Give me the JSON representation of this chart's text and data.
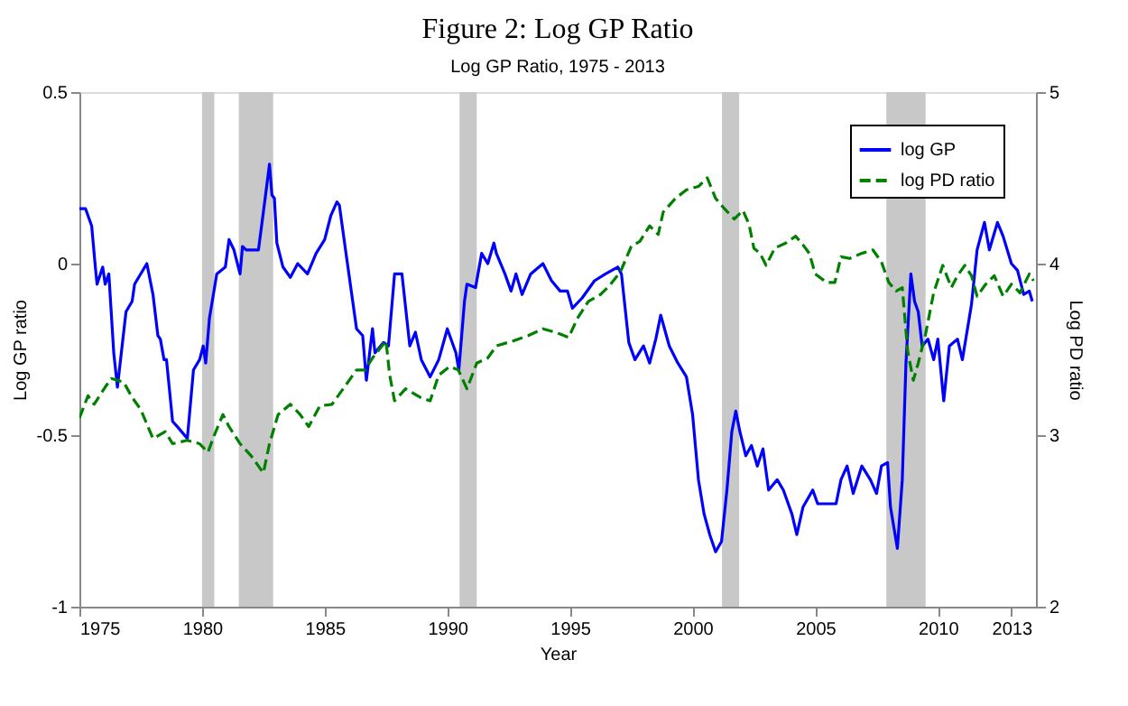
{
  "chart_data": {
    "type": "line",
    "title": "Figure 2: Log GP Ratio",
    "subtitle": "Log GP Ratio, 1975 - 2013",
    "xlabel": "Year",
    "ylabel": "Log GP ratio",
    "y2label": "Log PD ratio",
    "xlim": [
      1975,
      2014
    ],
    "xticks": [
      1975,
      1980,
      1985,
      1990,
      1995,
      2000,
      2005,
      2010,
      2013
    ],
    "ylim": [
      -1,
      0.5
    ],
    "yticks": [
      -1,
      -0.5,
      0,
      0.5
    ],
    "y2lim": [
      2,
      5
    ],
    "y2ticks": [
      2,
      3,
      4,
      5
    ],
    "grid": false,
    "legend": "top right",
    "bands": [
      {
        "axis": "x",
        "from": 1980.0,
        "to": 1980.5,
        "color": "#c8c8c8"
      },
      {
        "axis": "x",
        "from": 1981.5,
        "to": 1982.9,
        "color": "#c8c8c8"
      },
      {
        "axis": "x",
        "from": 1990.5,
        "to": 1991.2,
        "color": "#c8c8c8"
      },
      {
        "axis": "x",
        "from": 2001.2,
        "to": 2001.9,
        "color": "#c8c8c8"
      },
      {
        "axis": "x",
        "from": 2007.9,
        "to": 2009.5,
        "color": "#c8c8c8"
      }
    ],
    "series": [
      {
        "name": "log GP",
        "color": "#0000ff",
        "line_style": "solid",
        "x": [
          1975.0,
          1975.25,
          1975.5,
          1975.65,
          1975.72,
          1975.95,
          1976.05,
          1976.2,
          1976.4,
          1976.55,
          1976.9,
          1977.15,
          1977.25,
          1977.75,
          1978.0,
          1978.2,
          1978.3,
          1978.45,
          1978.55,
          1978.8,
          1979.05,
          1979.4,
          1979.65,
          1979.9,
          1980.05,
          1980.15,
          1980.3,
          1980.6,
          1980.95,
          1981.1,
          1981.3,
          1981.55,
          1981.65,
          1981.8,
          1982.0,
          1982.3,
          1982.5,
          1982.75,
          1982.85,
          1982.95,
          1983.05,
          1983.3,
          1983.6,
          1983.9,
          1984.3,
          1984.65,
          1985.0,
          1985.25,
          1985.5,
          1985.6,
          1985.85,
          1986.3,
          1986.55,
          1986.7,
          1986.95,
          1987.05,
          1987.4,
          1987.6,
          1987.85,
          1988.15,
          1988.47,
          1988.7,
          1988.94,
          1989.3,
          1989.65,
          1990.0,
          1990.35,
          1990.47,
          1990.7,
          1990.8,
          1991.15,
          1991.4,
          1991.65,
          1991.9,
          1992.0,
          1992.35,
          1992.6,
          1992.8,
          1993.05,
          1993.4,
          1993.9,
          1994.25,
          1994.6,
          1994.9,
          1995.1,
          1995.5,
          1996.0,
          1996.45,
          1996.95,
          1997.1,
          1997.4,
          1997.65,
          1998.0,
          1998.25,
          1998.5,
          1998.7,
          1999.05,
          1999.4,
          1999.75,
          2000.0,
          2000.24,
          2000.47,
          2000.7,
          2000.94,
          2001.18,
          2001.4,
          2001.6,
          2001.76,
          2001.93,
          2002.17,
          2002.4,
          2002.64,
          2002.87,
          2003.1,
          2003.45,
          2003.7,
          2004.05,
          2004.25,
          2004.5,
          2004.9,
          2005.1,
          2005.5,
          2005.85,
          2006.05,
          2006.3,
          2006.55,
          2006.9,
          2007.25,
          2007.5,
          2007.7,
          2007.95,
          2008.07,
          2008.35,
          2008.55,
          2008.7,
          2008.9,
          2009.05,
          2009.2,
          2009.36,
          2009.6,
          2009.83,
          2010.0,
          2010.24,
          2010.47,
          2010.8,
          2011.0,
          2011.37,
          2011.6,
          2011.9,
          2012.1,
          2012.43,
          2012.66,
          2013.0,
          2013.25,
          2013.5,
          2013.73,
          2013.85
        ],
        "values": [
          0.16,
          0.16,
          0.11,
          -0.01,
          -0.06,
          -0.01,
          -0.06,
          -0.03,
          -0.26,
          -0.36,
          -0.14,
          -0.11,
          -0.06,
          0.0,
          -0.09,
          -0.21,
          -0.22,
          -0.28,
          -0.28,
          -0.46,
          -0.48,
          -0.51,
          -0.31,
          -0.28,
          -0.24,
          -0.29,
          -0.16,
          -0.03,
          -0.01,
          0.07,
          0.04,
          -0.03,
          0.05,
          0.04,
          0.04,
          0.04,
          0.15,
          0.29,
          0.2,
          0.19,
          0.06,
          -0.01,
          -0.04,
          0.0,
          -0.03,
          0.03,
          0.07,
          0.14,
          0.18,
          0.17,
          0.04,
          -0.19,
          -0.21,
          -0.34,
          -0.19,
          -0.26,
          -0.23,
          -0.24,
          -0.03,
          -0.03,
          -0.24,
          -0.2,
          -0.28,
          -0.33,
          -0.28,
          -0.19,
          -0.26,
          -0.31,
          -0.11,
          -0.06,
          -0.07,
          0.03,
          0.0,
          0.06,
          0.03,
          -0.03,
          -0.08,
          -0.03,
          -0.09,
          -0.03,
          0.0,
          -0.05,
          -0.08,
          -0.08,
          -0.13,
          -0.1,
          -0.05,
          -0.03,
          -0.01,
          -0.03,
          -0.23,
          -0.28,
          -0.24,
          -0.29,
          -0.22,
          -0.15,
          -0.24,
          -0.29,
          -0.33,
          -0.44,
          -0.63,
          -0.73,
          -0.79,
          -0.84,
          -0.81,
          -0.66,
          -0.49,
          -0.43,
          -0.49,
          -0.56,
          -0.53,
          -0.59,
          -0.54,
          -0.66,
          -0.63,
          -0.66,
          -0.73,
          -0.79,
          -0.71,
          -0.66,
          -0.7,
          -0.7,
          -0.7,
          -0.63,
          -0.59,
          -0.67,
          -0.59,
          -0.63,
          -0.67,
          -0.59,
          -0.58,
          -0.71,
          -0.83,
          -0.63,
          -0.29,
          -0.03,
          -0.11,
          -0.14,
          -0.24,
          -0.22,
          -0.28,
          -0.22,
          -0.4,
          -0.24,
          -0.22,
          -0.28,
          -0.12,
          0.04,
          0.12,
          0.04,
          0.12,
          0.08,
          0.0,
          -0.02,
          -0.09,
          -0.08,
          -0.11
        ]
      },
      {
        "name": "log PD ratio",
        "color": "#008000",
        "line_style": "dashed",
        "axis": "y2",
        "x": [
          1975.0,
          1975.35,
          1975.6,
          1976.05,
          1976.3,
          1976.8,
          1977.15,
          1977.5,
          1978.0,
          1978.5,
          1978.8,
          1979.4,
          1979.9,
          1980.24,
          1980.5,
          1980.85,
          1981.1,
          1981.55,
          1982.0,
          1982.5,
          1982.75,
          1983.1,
          1983.6,
          1984.0,
          1984.35,
          1984.8,
          1985.3,
          1985.8,
          1986.3,
          1986.65,
          1986.95,
          1987.5,
          1987.65,
          1987.85,
          1988.3,
          1988.9,
          1989.3,
          1989.65,
          1990.1,
          1990.45,
          1990.8,
          1991.2,
          1991.65,
          1992.0,
          1992.7,
          1993.3,
          1993.9,
          1994.4,
          1994.95,
          1995.3,
          1995.75,
          1996.25,
          1996.6,
          1997.05,
          1997.5,
          1997.85,
          1998.25,
          1998.6,
          1998.8,
          1999.3,
          1999.75,
          2000.24,
          2000.6,
          2000.94,
          2001.3,
          2001.7,
          2002.05,
          2002.3,
          2002.5,
          2002.75,
          2003.0,
          2003.35,
          2003.8,
          2004.2,
          2004.5,
          2004.76,
          2005.0,
          2005.47,
          2005.8,
          2006.05,
          2006.4,
          2006.9,
          2007.35,
          2007.7,
          2008.0,
          2008.3,
          2008.55,
          2008.77,
          2009.0,
          2009.2,
          2009.5,
          2009.83,
          2010.2,
          2010.55,
          2010.8,
          2011.1,
          2011.37,
          2011.6,
          2011.95,
          2012.3,
          2012.66,
          2013.0,
          2013.35,
          2013.73,
          2013.9
        ],
        "values": [
          3.1,
          3.23,
          3.18,
          3.28,
          3.33,
          3.31,
          3.22,
          3.15,
          2.98,
          3.02,
          2.95,
          2.97,
          2.95,
          2.9,
          3.0,
          3.12,
          3.05,
          2.95,
          2.88,
          2.78,
          2.95,
          3.12,
          3.18,
          3.12,
          3.05,
          3.17,
          3.18,
          3.28,
          3.38,
          3.38,
          3.45,
          3.55,
          3.35,
          3.2,
          3.27,
          3.22,
          3.2,
          3.35,
          3.4,
          3.38,
          3.27,
          3.42,
          3.45,
          3.52,
          3.55,
          3.58,
          3.62,
          3.6,
          3.57,
          3.68,
          3.78,
          3.82,
          3.87,
          3.95,
          4.1,
          4.13,
          4.22,
          4.17,
          4.3,
          4.38,
          4.43,
          4.45,
          4.5,
          4.38,
          4.32,
          4.26,
          4.31,
          4.23,
          4.09,
          4.06,
          3.99,
          4.09,
          4.12,
          4.16,
          4.11,
          4.06,
          3.94,
          3.89,
          3.89,
          4.04,
          4.03,
          4.06,
          4.08,
          4.01,
          3.89,
          3.84,
          3.86,
          3.49,
          3.32,
          3.42,
          3.59,
          3.83,
          3.99,
          3.86,
          3.93,
          3.99,
          3.93,
          3.81,
          3.88,
          3.93,
          3.81,
          3.88,
          3.83,
          3.94,
          3.9
        ]
      }
    ]
  }
}
